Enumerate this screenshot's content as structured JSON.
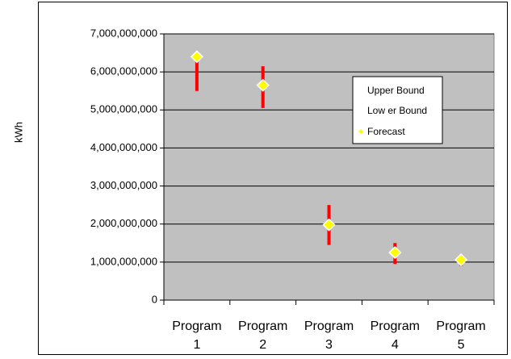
{
  "chart_data": {
    "type": "scatter",
    "title": "",
    "ylabel": "kWh",
    "xlabel": "",
    "ylim": [
      0,
      7000000000
    ],
    "y_ticks": [
      {
        "value": 0,
        "label": "0"
      },
      {
        "value": 1000000000,
        "label": "1,000,000,000"
      },
      {
        "value": 2000000000,
        "label": "2,000,000,000"
      },
      {
        "value": 3000000000,
        "label": "3,000,000,000"
      },
      {
        "value": 4000000000,
        "label": "4,000,000,000"
      },
      {
        "value": 5000000000,
        "label": "5,000,000,000"
      },
      {
        "value": 6000000000,
        "label": "6,000,000,000"
      },
      {
        "value": 7000000000,
        "label": "7,000,000,000"
      }
    ],
    "categories": [
      {
        "line1": "Program",
        "line2": "1"
      },
      {
        "line1": "Program",
        "line2": "2"
      },
      {
        "line1": "Program",
        "line2": "3"
      },
      {
        "line1": "Program",
        "line2": "4"
      },
      {
        "line1": "Program",
        "line2": "5"
      }
    ],
    "series": [
      {
        "name": "Upper Bound",
        "values": [
          6450000000,
          6150000000,
          2500000000,
          1500000000,
          1050000000
        ],
        "color": "#ff0000"
      },
      {
        "name": "Lower Bound",
        "values": [
          5500000000,
          5050000000,
          1450000000,
          950000000,
          900000000
        ],
        "color": "#ff0000"
      },
      {
        "name": "Forecast",
        "values": [
          6400000000,
          5650000000,
          1980000000,
          1250000000,
          1060000000
        ],
        "color": "#ffff00"
      }
    ],
    "legend_labels": [
      "Upper Bound",
      "Low er Bound",
      "Forecast"
    ],
    "legend_position": "right",
    "grid": true,
    "plot_background": "#c0c0c0"
  }
}
